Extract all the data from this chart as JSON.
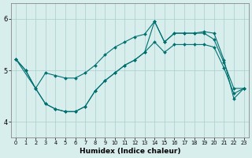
{
  "xlabel": "Humidex (Indice chaleur)",
  "background_color": "#d8eeed",
  "line_color": "#007070",
  "grid_color_major": "#aacece",
  "grid_color_minor": "#c4dede",
  "xlim": [
    -0.5,
    23.5
  ],
  "ylim": [
    3.7,
    6.3
  ],
  "yticks": [
    4,
    5,
    6
  ],
  "xticks": [
    0,
    1,
    2,
    3,
    4,
    5,
    6,
    7,
    8,
    9,
    10,
    11,
    12,
    13,
    14,
    15,
    16,
    17,
    18,
    19,
    20,
    21,
    22,
    23
  ],
  "series": [
    {
      "x": [
        0,
        1,
        2,
        3,
        4,
        5,
        6,
        7,
        8,
        9,
        10,
        11,
        12,
        13,
        14,
        15,
        16,
        17,
        18,
        19,
        20,
        21,
        22,
        23
      ],
      "y": [
        5.22,
        5.0,
        4.65,
        4.95,
        4.9,
        4.85,
        4.85,
        4.95,
        5.1,
        5.3,
        5.45,
        5.55,
        5.65,
        5.7,
        5.95,
        5.55,
        5.72,
        5.72,
        5.72,
        5.72,
        5.6,
        5.15,
        4.65,
        4.65
      ]
    },
    {
      "x": [
        0,
        1,
        2,
        3,
        4,
        5,
        6,
        7,
        8,
        9,
        10,
        11,
        12,
        13,
        14,
        15,
        16,
        17,
        18,
        19,
        20,
        21,
        22,
        23
      ],
      "y": [
        5.22,
        5.0,
        4.65,
        4.35,
        4.25,
        4.2,
        4.2,
        4.3,
        4.6,
        4.8,
        4.95,
        5.1,
        5.2,
        5.35,
        5.55,
        5.35,
        5.5,
        5.5,
        5.5,
        5.5,
        5.45,
        5.05,
        4.55,
        4.65
      ]
    },
    {
      "x": [
        0,
        2,
        3,
        4,
        5,
        6,
        7,
        8,
        9,
        10,
        11,
        12,
        13,
        14,
        15,
        16,
        17,
        18,
        19,
        20,
        21,
        22,
        23
      ],
      "y": [
        5.22,
        4.65,
        4.35,
        4.25,
        4.2,
        4.2,
        4.3,
        4.6,
        4.8,
        4.95,
        5.1,
        5.2,
        5.35,
        5.95,
        5.55,
        5.72,
        5.72,
        5.72,
        5.75,
        5.72,
        5.2,
        4.45,
        4.65
      ]
    }
  ]
}
